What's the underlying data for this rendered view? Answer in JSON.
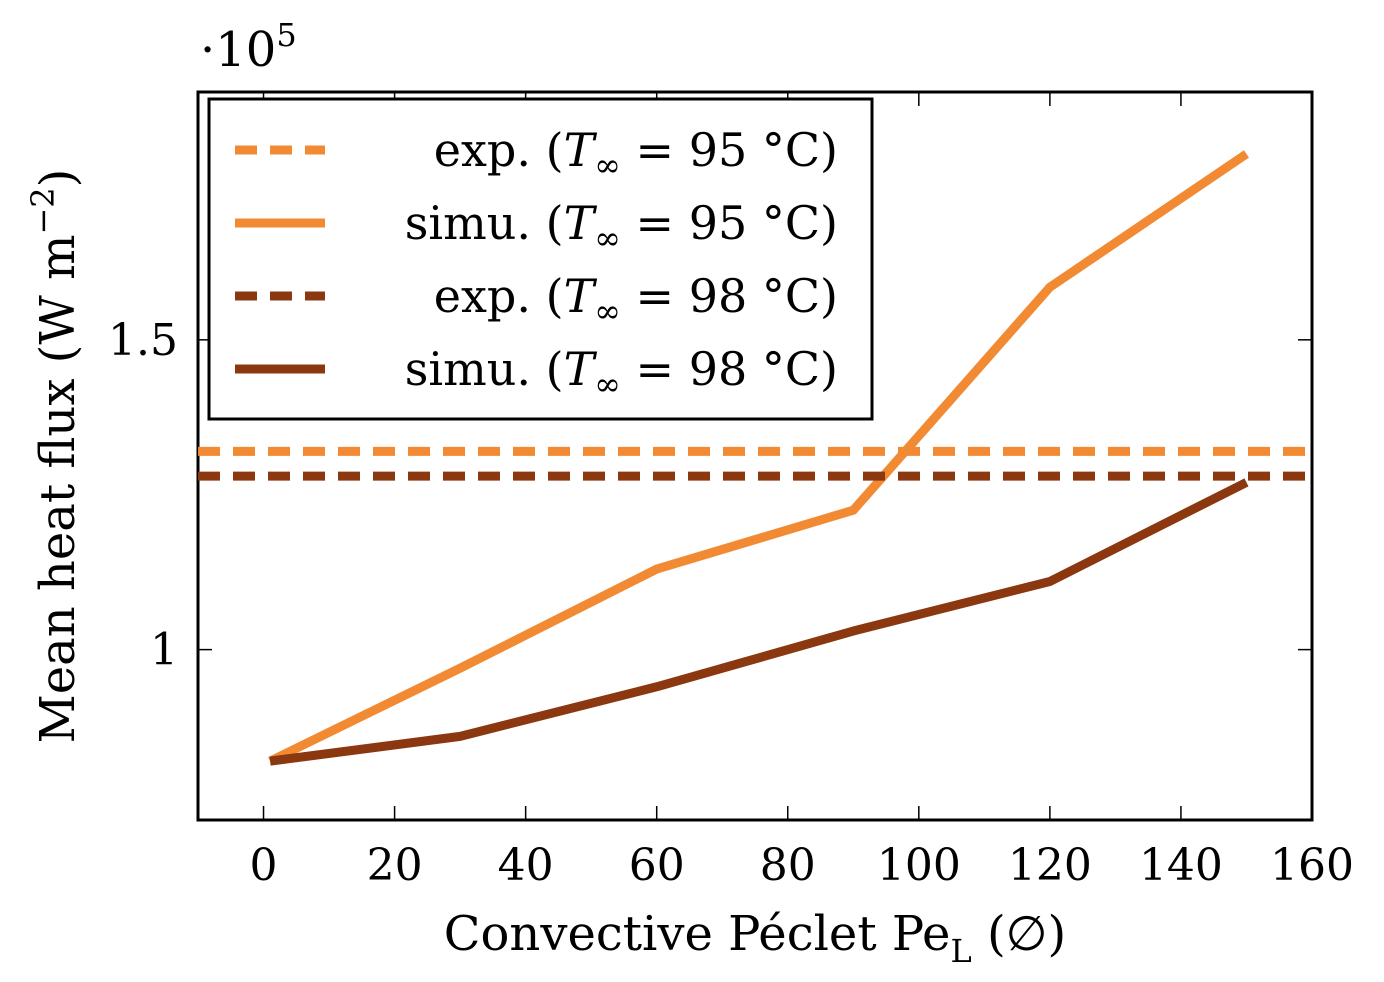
{
  "chart_data": {
    "type": "line",
    "title": "",
    "xlabel": "Convective Péclet Pe",
    "xlabel_sub": "L",
    "xlabel_unit": "(∅)",
    "ylabel": "Mean heat flux (W m",
    "ylabel_sup": "−2",
    "ylabel_close": ")",
    "y_multiplier_base": "·10",
    "y_multiplier_exp": "5",
    "xlim": [
      -10,
      160
    ],
    "ylim": [
      0.725,
      1.9
    ],
    "xticks": [
      0,
      20,
      40,
      60,
      80,
      100,
      120,
      140,
      160
    ],
    "xtick_labels": [
      "0",
      "20",
      "40",
      "60",
      "80",
      "100",
      "120",
      "140",
      "160"
    ],
    "yticks": [
      1.0,
      1.5
    ],
    "ytick_labels": [
      "1",
      "1.5"
    ],
    "grid": false,
    "legend_position": "top-left",
    "series": [
      {
        "name": "exp. (T∞ = 95 °C)",
        "label_prefix": "exp.",
        "label_var": "T",
        "label_sub": "∞",
        "label_rest": " = 95 °C)",
        "style": "dashed",
        "color": "#f28a33",
        "x": [
          -10,
          160
        ],
        "y": [
          1.32,
          1.32
        ]
      },
      {
        "name": "simu. (T∞ = 95 °C)",
        "label_prefix": "simu.",
        "label_var": "T",
        "label_sub": "∞",
        "label_rest": " = 95 °C)",
        "style": "solid",
        "color": "#f28a33",
        "x": [
          1,
          30,
          60,
          90,
          120,
          150
        ],
        "y": [
          0.82,
          0.97,
          1.13,
          1.225,
          1.585,
          1.8
        ]
      },
      {
        "name": "exp. (T∞ = 98 °C)",
        "label_prefix": "exp.",
        "label_var": "T",
        "label_sub": "∞",
        "label_rest": " = 98 °C)",
        "style": "dashed",
        "color": "#8b3810",
        "x": [
          -10,
          160
        ],
        "y": [
          1.28,
          1.28
        ]
      },
      {
        "name": "simu. (T∞ = 98 °C)",
        "label_prefix": "simu.",
        "label_var": "T",
        "label_sub": "∞",
        "label_rest": " = 98 °C)",
        "style": "solid",
        "color": "#8b3810",
        "x": [
          1,
          30,
          60,
          90,
          120,
          150
        ],
        "y": [
          0.82,
          0.86,
          0.94,
          1.03,
          1.11,
          1.27
        ]
      }
    ]
  }
}
